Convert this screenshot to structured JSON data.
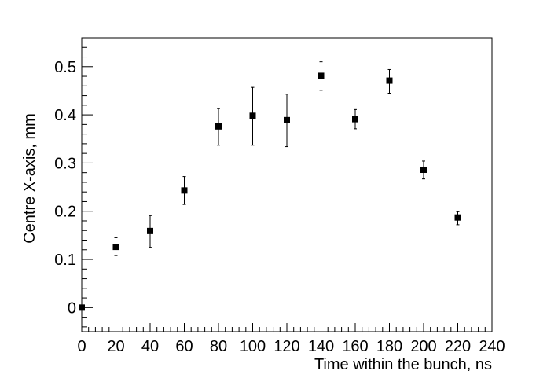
{
  "chart_data": {
    "type": "scatter",
    "title": "",
    "xlabel": "Time within the bunch, ns",
    "ylabel": "Centre X-axis, mm",
    "xlim": [
      0,
      240
    ],
    "ylim": [
      -0.05,
      0.56
    ],
    "x_ticks": [
      "0",
      "20",
      "40",
      "60",
      "80",
      "100",
      "120",
      "140",
      "160",
      "180",
      "200",
      "220",
      "240"
    ],
    "y_ticks": [
      "0",
      "0.1",
      "0.2",
      "0.3",
      "0.4",
      "0.5"
    ],
    "marker": "filled-square",
    "color": "#000000",
    "grid": false,
    "series": [
      {
        "x": [
          0,
          20,
          40,
          60,
          80,
          100,
          120,
          140,
          160,
          180,
          200,
          220
        ],
        "y": [
          0.0,
          0.126,
          0.159,
          0.243,
          0.376,
          0.398,
          0.389,
          0.481,
          0.391,
          0.471,
          0.286,
          0.187
        ],
        "err_low": [
          0.0,
          0.018,
          0.034,
          0.029,
          0.039,
          0.061,
          0.055,
          0.03,
          0.02,
          0.026,
          0.019,
          0.015
        ],
        "err_high": [
          0.0,
          0.019,
          0.032,
          0.029,
          0.037,
          0.059,
          0.054,
          0.029,
          0.02,
          0.023,
          0.018,
          0.012
        ]
      }
    ]
  }
}
